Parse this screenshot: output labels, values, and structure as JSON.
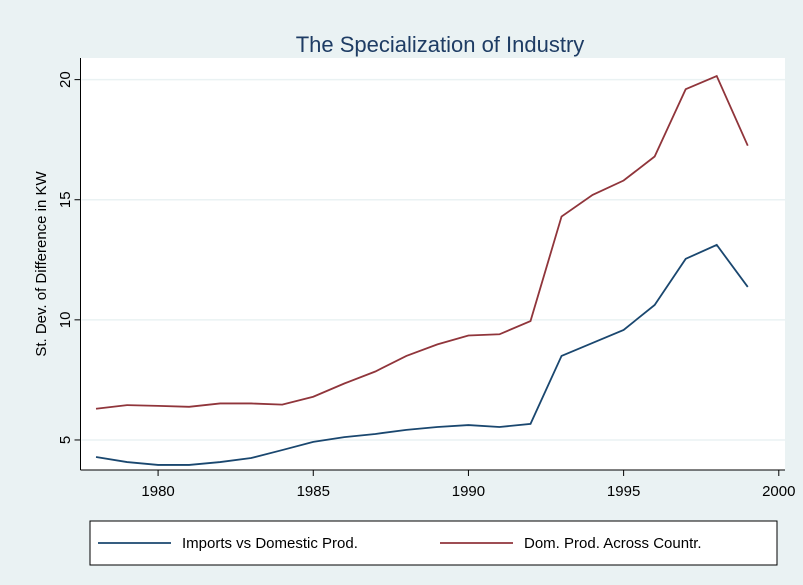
{
  "chart_data": {
    "type": "line",
    "title": "The Specialization of Industry",
    "y_label": "St. Dev. of Difference in KW",
    "x": [
      1978,
      1979,
      1980,
      1981,
      1982,
      1983,
      1984,
      1985,
      1986,
      1987,
      1988,
      1989,
      1990,
      1991,
      1992,
      1993,
      1994,
      1995,
      1996,
      1997,
      1998,
      1999
    ],
    "series": [
      {
        "name": "Imports vs Domestic Prod.",
        "color": "#1a476f",
        "values": [
          4.29,
          4.08,
          3.96,
          3.96,
          4.08,
          4.25,
          4.58,
          4.92,
          5.12,
          5.25,
          5.42,
          5.54,
          5.62,
          5.54,
          5.67,
          8.5,
          9.04,
          9.58,
          10.62,
          12.54,
          13.12,
          11.37
        ]
      },
      {
        "name": "Dom. Prod. Across Countr.",
        "color": "#90353b",
        "values": [
          6.3,
          6.45,
          6.42,
          6.38,
          6.52,
          6.52,
          6.47,
          6.8,
          7.35,
          7.85,
          8.5,
          8.98,
          9.35,
          9.4,
          9.95,
          14.3,
          15.2,
          15.8,
          16.8,
          19.6,
          20.15,
          17.25
        ]
      }
    ],
    "xlim": [
      1977.5,
      2000.2
    ],
    "xticks": [
      1980,
      1985,
      1990,
      1995,
      2000
    ],
    "ylim": [
      3.75,
      20.9
    ],
    "yticks": [
      5,
      10,
      15,
      20
    ],
    "grid": true,
    "legend": "bottom"
  }
}
